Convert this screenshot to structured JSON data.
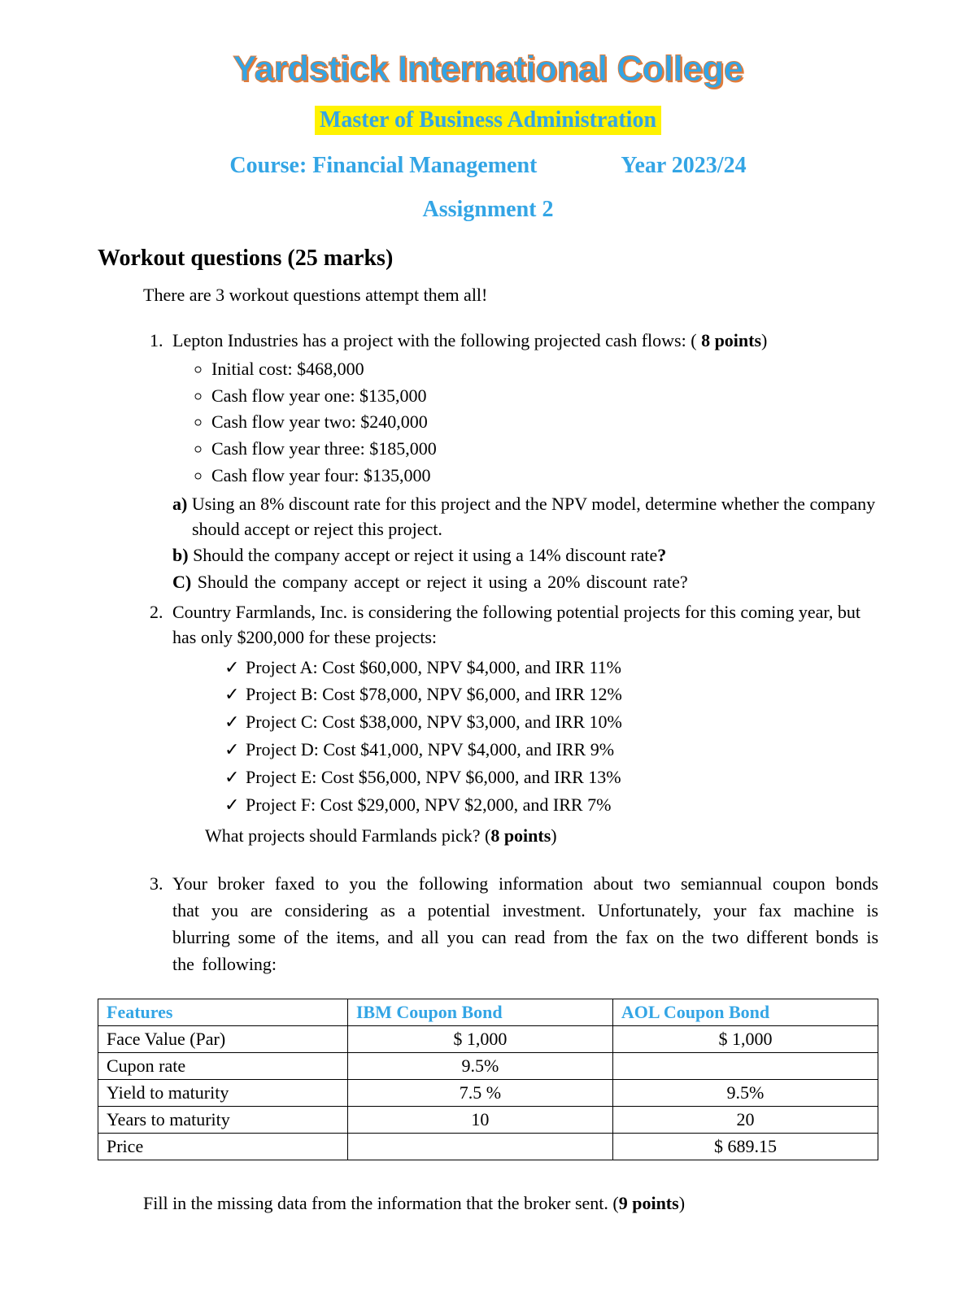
{
  "header": {
    "college": "Yardstick International College",
    "program": "Master of Business Administration",
    "course_label": "Course:  Financial Management",
    "year_label": "Year 2023/24",
    "assignment": "Assignment 2"
  },
  "section": {
    "title": "Workout questions (25 marks)",
    "intro": "There are 3 workout questions attempt them all!"
  },
  "q1": {
    "lead": "Lepton Industries has a project with the following projected cash flows:  (",
    "points": " 8 points",
    "lead_tail": ")",
    "items": [
      "Initial cost: $468,000",
      "Cash flow year one: $135,000",
      "Cash flow year two: $240,000",
      "Cash flow year three: $185,000",
      "Cash flow year four: $135,000"
    ],
    "a_label": "a)",
    "a_text": " Using an 8% discount rate for this project and the NPV model, determine whether the company should accept or reject this project.",
    "b_label": "b)",
    "b_text_pre": " Should the company accept or reject it using a 14% discount rate",
    "b_qmark": "?",
    "c_label": "C)",
    "c_text": " Should  the  company  accept  or  reject  it  using  a  20%  discount  rate?"
  },
  "q2": {
    "lead": "Country Farmlands, Inc. is considering the following potential projects for this coming year, but has only $200,000 for these projects:",
    "projects": [
      "Project A: Cost $60,000, NPV $4,000, and IRR 11%",
      "Project B: Cost $78,000, NPV $6,000, and IRR 12%",
      "Project C: Cost $38,000, NPV $3,000, and IRR 10%",
      "Project D: Cost $41,000, NPV $4,000, and IRR 9%",
      "Project E: Cost $56,000, NPV $6,000, and IRR 13%",
      "Project F: Cost $29,000, NPV $2,000, and IRR 7%"
    ],
    "final_pre": "What projects should Farmlands pick?    (",
    "final_points": "8 points",
    "final_post": ")"
  },
  "q3": {
    "text": "Your  broker  faxed  to  you  the  following   information  about  two  semiannual  coupon  bonds  that  you  are  considering  as  a  potential  investment.  Unfortunately,  your  fax  machine  is  blurring  some  of  the  items,  and  all  you  can  read  from  the  fax  on  the  two   different  bonds  is  the  following:",
    "table": {
      "headers": [
        "Features",
        "IBM Coupon Bond",
        "AOL Coupon Bond"
      ],
      "rows": [
        {
          "label": "Face Value (Par)",
          "ibm": "$ 1,000",
          "aol": "$ 1,000"
        },
        {
          "label": "Cupon rate",
          "ibm": "9.5%",
          "aol": ""
        },
        {
          "label": "Yield to maturity",
          "ibm": "7.5 %",
          "aol": "9.5%"
        },
        {
          "label": "Years to maturity",
          "ibm": "10",
          "aol": "20"
        },
        {
          "label": "Price",
          "ibm": "",
          "aol": "$ 689.15"
        }
      ],
      "col_widths": [
        "32%",
        "34%",
        "34%"
      ]
    },
    "fill_pre": "Fill in the missing data from the information that the broker sent.  (",
    "fill_points": "9 points",
    "fill_post": ")"
  },
  "colors": {
    "accent": "#33a5e5",
    "highlight": "#fff200",
    "outline": "#e07b3a",
    "text": "#000000",
    "background": "#ffffff"
  }
}
